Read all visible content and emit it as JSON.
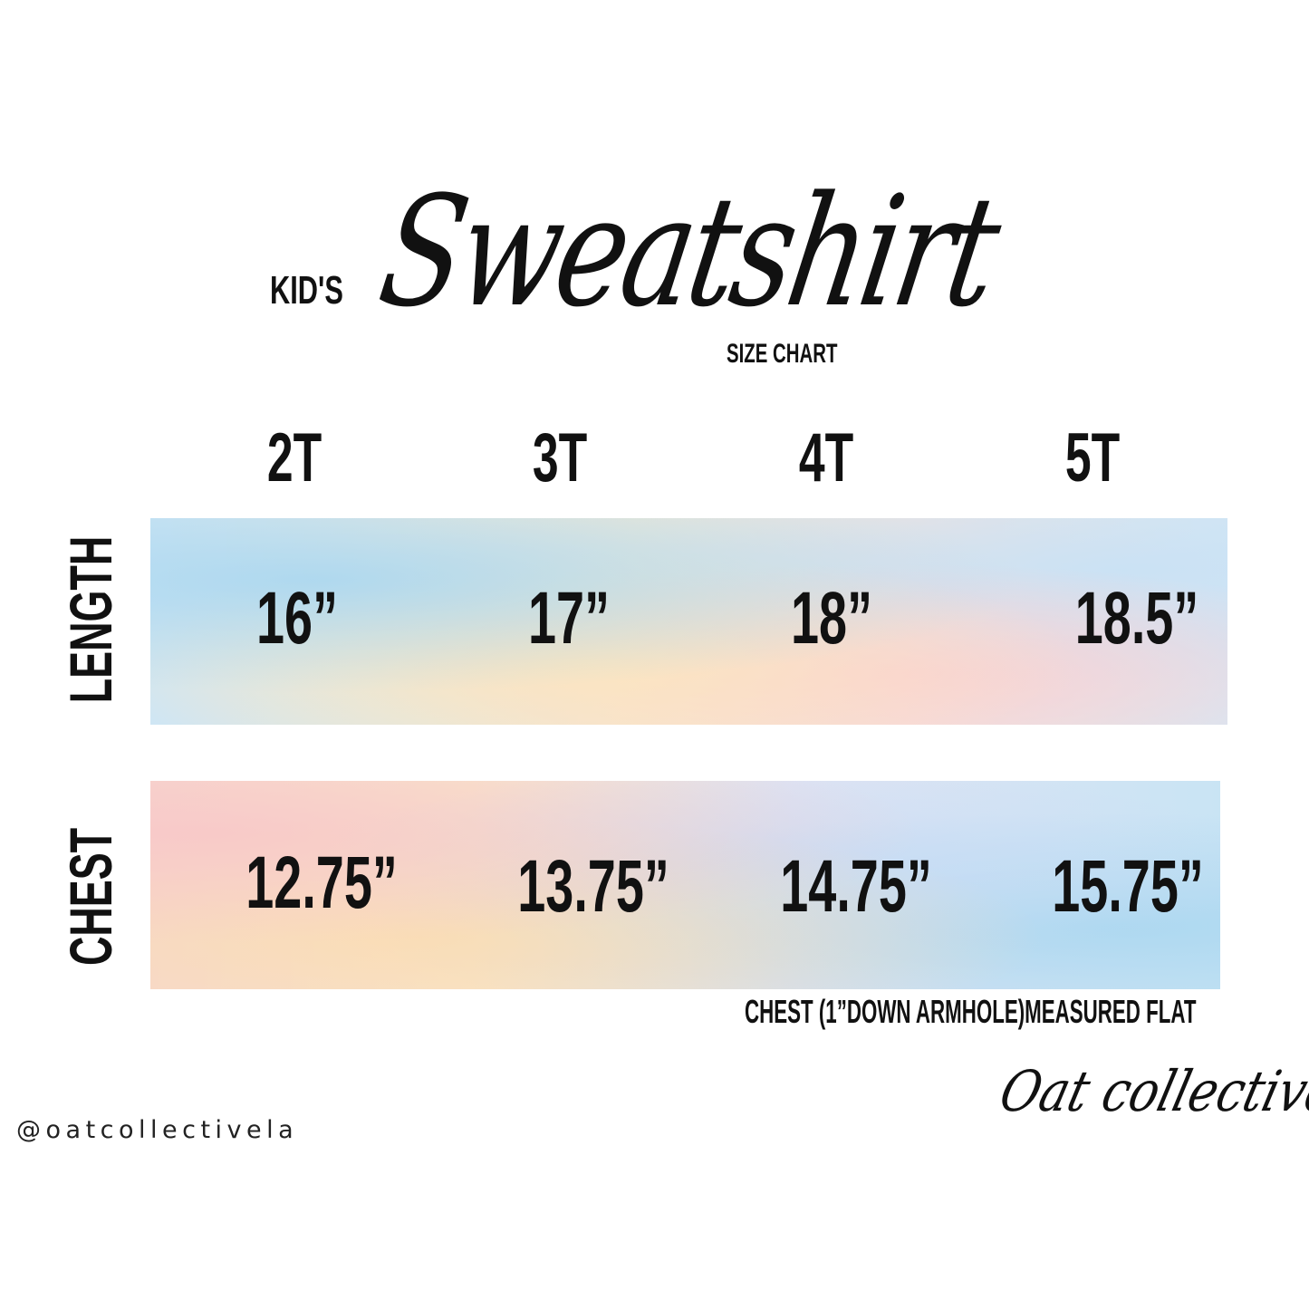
{
  "header": {
    "prefix": "KID'S",
    "title": "Sweatshirt",
    "subtitle": "SIZE CHART"
  },
  "table": {
    "columns": [
      "2T",
      "3T",
      "4T",
      "5T"
    ],
    "rows": [
      {
        "label": "LENGTH",
        "values": [
          "16”",
          "17”",
          "18”",
          "18.5”"
        ]
      },
      {
        "label": "CHEST",
        "values": [
          "12.75”",
          "13.75”",
          "14.75”",
          "15.75”"
        ]
      }
    ]
  },
  "note": "CHEST (1”DOWN ARMHOLE)MEASURED FLAT",
  "footer": {
    "handle": "@oatcollectivela",
    "logo": "Oat collective"
  },
  "colors": {
    "text": "#111111",
    "background": "#ffffff"
  }
}
